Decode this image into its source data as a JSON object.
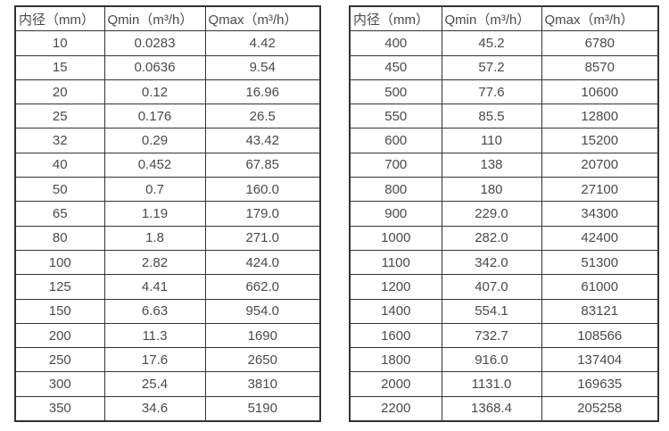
{
  "colors": {
    "background": "#ffffff",
    "border": "#333333",
    "text": "#4a4a4a"
  },
  "tables": [
    {
      "name": "flow-table-small-diameters",
      "headers": [
        "内径（mm）",
        "Qmin（m³/h）",
        "Qmax（m³/h）"
      ],
      "rows": [
        [
          "10",
          "0.0283",
          "4.42"
        ],
        [
          "15",
          "0.0636",
          "9.54"
        ],
        [
          "20",
          "0.12",
          "16.96"
        ],
        [
          "25",
          "0.176",
          "26.5"
        ],
        [
          "32",
          "0.29",
          "43.42"
        ],
        [
          "40",
          "0.452",
          "67.85"
        ],
        [
          "50",
          "0.7",
          "160.0"
        ],
        [
          "65",
          "1.19",
          "179.0"
        ],
        [
          "80",
          "1.8",
          "271.0"
        ],
        [
          "100",
          "2.82",
          "424.0"
        ],
        [
          "125",
          "4.41",
          "662.0"
        ],
        [
          "150",
          "6.63",
          "954.0"
        ],
        [
          "200",
          "11.3",
          "1690"
        ],
        [
          "250",
          "17.6",
          "2650"
        ],
        [
          "300",
          "25.4",
          "3810"
        ],
        [
          "350",
          "34.6",
          "5190"
        ]
      ]
    },
    {
      "name": "flow-table-large-diameters",
      "headers": [
        "内径（mm）",
        "Qmin（m³/h）",
        "Qmax（m³/h）"
      ],
      "rows": [
        [
          "400",
          "45.2",
          "6780"
        ],
        [
          "450",
          "57.2",
          "8570"
        ],
        [
          "500",
          "77.6",
          "10600"
        ],
        [
          "550",
          "85.5",
          "12800"
        ],
        [
          "600",
          "110",
          "15200"
        ],
        [
          "700",
          "138",
          "20700"
        ],
        [
          "800",
          "180",
          "27100"
        ],
        [
          "900",
          "229.0",
          "34300"
        ],
        [
          "1000",
          "282.0",
          "42400"
        ],
        [
          "1100",
          "342.0",
          "51300"
        ],
        [
          "1200",
          "407.0",
          "61000"
        ],
        [
          "1400",
          "554.1",
          "83121"
        ],
        [
          "1600",
          "732.7",
          "108566"
        ],
        [
          "1800",
          "916.0",
          "137404"
        ],
        [
          "2000",
          "1131.0",
          "169635"
        ],
        [
          "2200",
          "1368.4",
          "205258"
        ]
      ]
    }
  ]
}
